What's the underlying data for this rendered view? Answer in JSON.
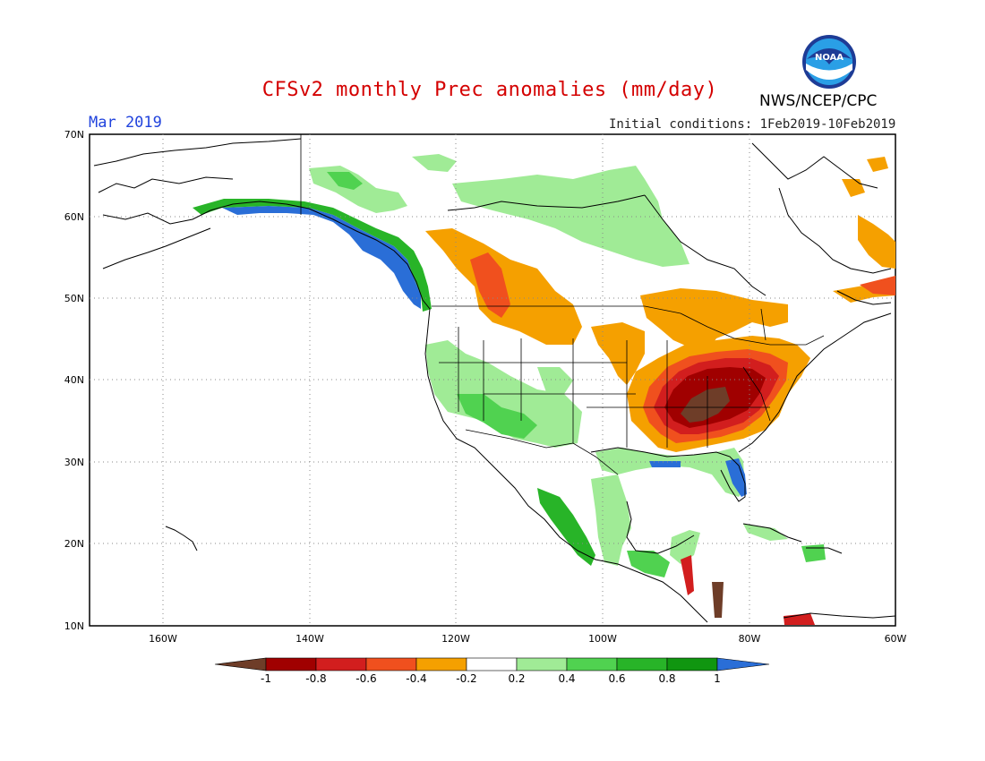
{
  "header": {
    "title": "CFSv2 monthly Prec anomalies (mm/day)",
    "month": "Mar 2019",
    "initial_conditions": "Initial conditions: 1Feb2019-10Feb2019",
    "agency": "NWS/NCEP/CPC",
    "logo_text": "NOAA"
  },
  "axes": {
    "lat_labels": [
      "70N",
      "60N",
      "50N",
      "40N",
      "30N",
      "20N",
      "10N"
    ],
    "lon_labels": [
      "160W",
      "140W",
      "120W",
      "100W",
      "80W",
      "60W"
    ]
  },
  "colorbar": {
    "labels": [
      "-1",
      "-0.8",
      "-0.6",
      "-0.4",
      "-0.2",
      "0.2",
      "0.4",
      "0.6",
      "0.8",
      "1"
    ],
    "colors": [
      "#6e3d28",
      "#a00000",
      "#d21e1e",
      "#f0501e",
      "#f5a000",
      "#ffffff",
      "#a0eb96",
      "#50d250",
      "#28b428",
      "#109610",
      "#2a6ed7"
    ]
  }
}
